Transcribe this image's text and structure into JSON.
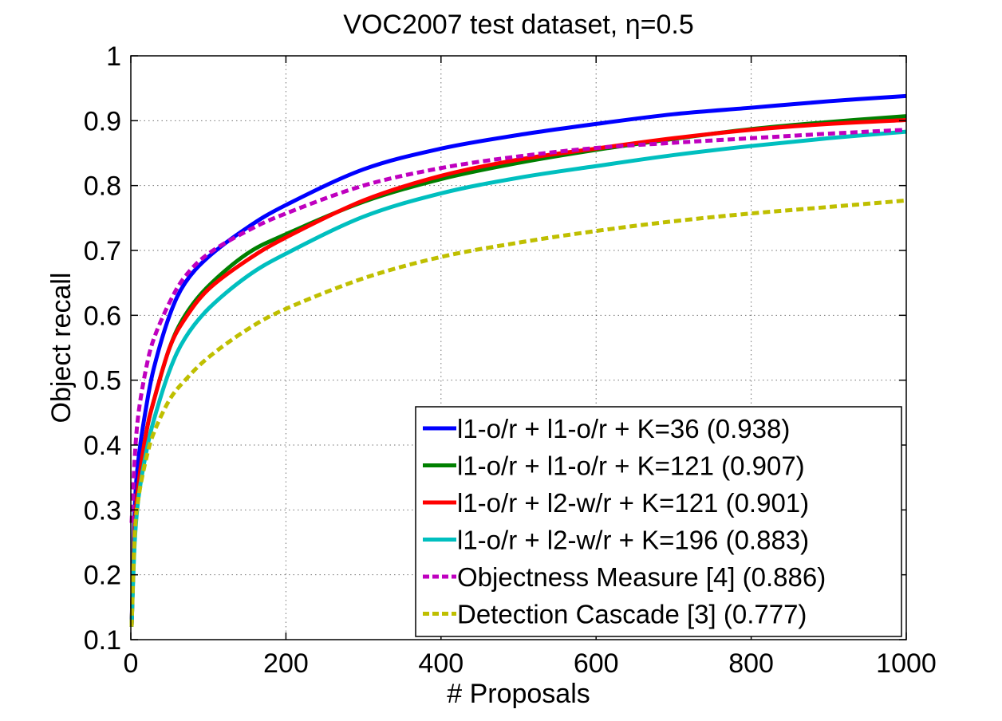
{
  "chart_data": {
    "type": "line",
    "title": "VOC2007 test dataset, η=0.5",
    "xlabel": "# Proposals",
    "ylabel": "Object recall",
    "xlim": [
      0,
      1000
    ],
    "ylim": [
      0.1,
      1.0
    ],
    "xticks": [
      0,
      200,
      400,
      600,
      800,
      1000
    ],
    "yticks": [
      0.1,
      0.2,
      0.3,
      0.4,
      0.5,
      0.6,
      0.7,
      0.8,
      0.9,
      1.0
    ],
    "ytick_labels": [
      "0.1",
      "0.2",
      "0.3",
      "0.4",
      "0.5",
      "0.6",
      "0.7",
      "0.8",
      "0.9",
      "1"
    ],
    "xtick_labels": [
      "0",
      "200",
      "400",
      "600",
      "800",
      "1000"
    ],
    "grid": true,
    "legend_position": "bottom-right",
    "series": [
      {
        "name": "l1-o/r + l1-o/r + K=36 (0.938)",
        "color": "#0000ff",
        "style": "solid",
        "x": [
          1,
          5,
          10,
          20,
          30,
          50,
          70,
          100,
          150,
          200,
          300,
          400,
          500,
          600,
          700,
          800,
          900,
          1000
        ],
        "y": [
          0.12,
          0.3,
          0.38,
          0.46,
          0.52,
          0.6,
          0.65,
          0.69,
          0.735,
          0.77,
          0.825,
          0.857,
          0.878,
          0.895,
          0.91,
          0.92,
          0.93,
          0.938
        ]
      },
      {
        "name": "l1-o/r + l1-o/r + K=121 (0.907)",
        "color": "#008000",
        "style": "solid",
        "x": [
          1,
          5,
          10,
          20,
          30,
          50,
          70,
          100,
          150,
          200,
          300,
          400,
          500,
          600,
          700,
          800,
          900,
          1000
        ],
        "y": [
          0.12,
          0.27,
          0.34,
          0.42,
          0.47,
          0.55,
          0.6,
          0.645,
          0.695,
          0.725,
          0.775,
          0.81,
          0.835,
          0.855,
          0.872,
          0.887,
          0.898,
          0.907
        ]
      },
      {
        "name": "l1-o/r + l2-w/r + K=121 (0.901)",
        "color": "#ff0000",
        "style": "solid",
        "x": [
          1,
          5,
          10,
          20,
          30,
          50,
          70,
          100,
          150,
          200,
          300,
          400,
          500,
          600,
          700,
          800,
          900,
          1000
        ],
        "y": [
          0.12,
          0.27,
          0.34,
          0.42,
          0.47,
          0.55,
          0.595,
          0.64,
          0.685,
          0.72,
          0.777,
          0.815,
          0.84,
          0.857,
          0.873,
          0.886,
          0.895,
          0.901
        ]
      },
      {
        "name": "l1-o/r + l2-w/r + K=196 (0.883)",
        "color": "#00bfbf",
        "style": "solid",
        "x": [
          1,
          5,
          10,
          20,
          30,
          50,
          70,
          100,
          150,
          200,
          300,
          400,
          500,
          600,
          700,
          800,
          900,
          1000
        ],
        "y": [
          0.12,
          0.25,
          0.32,
          0.39,
          0.44,
          0.515,
          0.565,
          0.61,
          0.66,
          0.695,
          0.752,
          0.788,
          0.812,
          0.83,
          0.847,
          0.861,
          0.873,
          0.883
        ]
      },
      {
        "name": "Objectness Measure [4] (0.886)",
        "color": "#bf00bf",
        "style": "dashed",
        "x": [
          1,
          5,
          10,
          20,
          30,
          50,
          70,
          100,
          150,
          200,
          300,
          400,
          500,
          600,
          700,
          800,
          900,
          1000
        ],
        "y": [
          0.28,
          0.38,
          0.45,
          0.52,
          0.565,
          0.62,
          0.66,
          0.695,
          0.73,
          0.757,
          0.8,
          0.827,
          0.845,
          0.858,
          0.866,
          0.873,
          0.88,
          0.886
        ]
      },
      {
        "name": "Detection Cascade [3] (0.777)",
        "color": "#bfbf00",
        "style": "dashed",
        "x": [
          1,
          5,
          10,
          20,
          30,
          50,
          70,
          100,
          150,
          200,
          300,
          400,
          500,
          600,
          700,
          800,
          900,
          1000
        ],
        "y": [
          0.12,
          0.26,
          0.32,
          0.38,
          0.42,
          0.47,
          0.5,
          0.535,
          0.578,
          0.61,
          0.657,
          0.69,
          0.712,
          0.73,
          0.745,
          0.757,
          0.767,
          0.777
        ]
      }
    ]
  }
}
